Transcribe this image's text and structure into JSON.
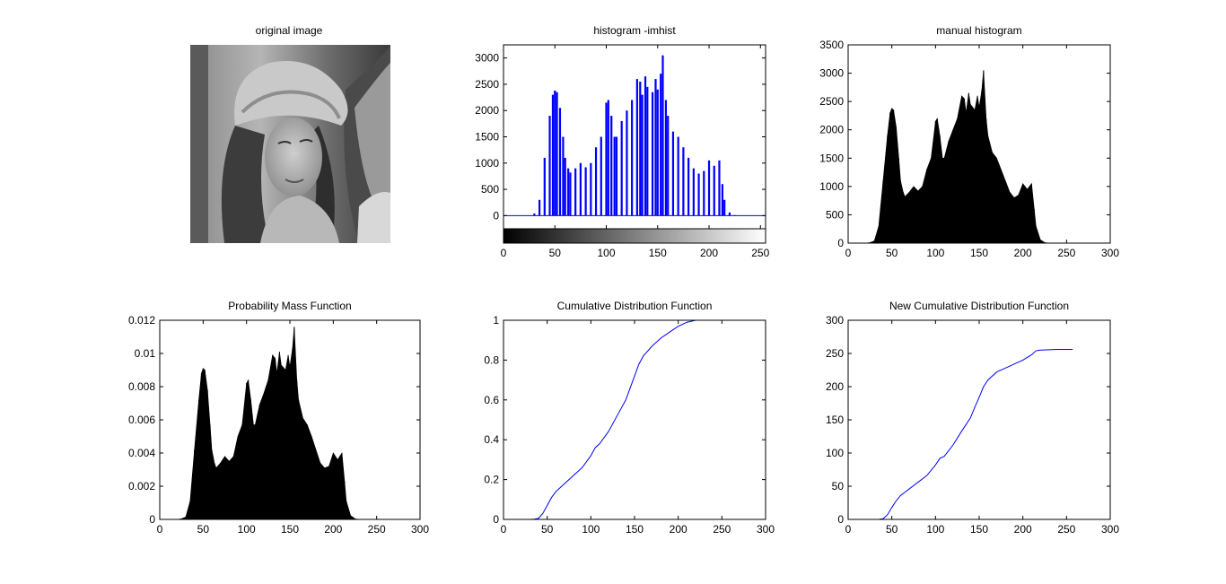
{
  "figure": {
    "background": "#ffffff",
    "image_panel_title": "original image",
    "image_subject": "grayscale portrait photo of a woman wearing a wide-brimmed hat"
  },
  "chart_data": [
    {
      "id": "imhist",
      "type": "bar",
      "title": "histogram -imhist",
      "color": "#0000ff",
      "xlim": [
        0,
        255
      ],
      "ylim": [
        -250,
        3250
      ],
      "xticks": [
        0,
        50,
        100,
        150,
        200,
        250
      ],
      "yticks": [
        0,
        500,
        1000,
        1500,
        2000,
        2500,
        3000
      ],
      "colorbar": "grayscale gradient 0 to 255",
      "x": [
        30,
        35,
        40,
        45,
        48,
        50,
        52,
        55,
        58,
        60,
        63,
        65,
        70,
        75,
        80,
        85,
        90,
        95,
        100,
        102,
        105,
        108,
        110,
        115,
        120,
        125,
        130,
        133,
        135,
        138,
        140,
        145,
        148,
        150,
        153,
        155,
        158,
        160,
        165,
        170,
        175,
        180,
        185,
        190,
        195,
        200,
        205,
        210,
        213,
        215,
        220,
        225,
        230
      ],
      "values": [
        40,
        300,
        1100,
        1900,
        2300,
        2380,
        2350,
        2050,
        1500,
        1100,
        900,
        820,
        900,
        1000,
        920,
        1000,
        1300,
        1500,
        2150,
        2200,
        1900,
        1500,
        1500,
        1800,
        2000,
        2200,
        2600,
        2550,
        2300,
        2650,
        2450,
        2350,
        2600,
        2400,
        2700,
        3050,
        2200,
        1900,
        1600,
        1500,
        1300,
        1100,
        900,
        800,
        850,
        1050,
        950,
        1050,
        600,
        300,
        60,
        10,
        0
      ]
    },
    {
      "id": "manual",
      "type": "area",
      "title": "manual histogram",
      "color": "#000000",
      "xlim": [
        0,
        300
      ],
      "ylim": [
        0,
        3500
      ],
      "xticks": [
        0,
        50,
        100,
        150,
        200,
        250,
        300
      ],
      "yticks": [
        0,
        500,
        1000,
        1500,
        2000,
        2500,
        3000,
        3500
      ],
      "x": [
        0,
        20,
        25,
        30,
        35,
        40,
        45,
        48,
        50,
        52,
        55,
        58,
        60,
        63,
        65,
        70,
        75,
        80,
        85,
        90,
        95,
        100,
        102,
        105,
        108,
        110,
        115,
        120,
        125,
        130,
        133,
        135,
        138,
        140,
        145,
        148,
        150,
        153,
        155,
        158,
        160,
        165,
        170,
        175,
        180,
        185,
        190,
        195,
        200,
        205,
        210,
        213,
        215,
        220,
        225,
        230,
        240,
        256
      ],
      "values": [
        0,
        0,
        10,
        40,
        300,
        1100,
        1900,
        2300,
        2380,
        2350,
        2050,
        1500,
        1100,
        900,
        820,
        900,
        1000,
        920,
        1000,
        1300,
        1500,
        2150,
        2200,
        1900,
        1500,
        1500,
        1800,
        2000,
        2200,
        2600,
        2550,
        2300,
        2650,
        2450,
        2350,
        2600,
        2400,
        2700,
        3050,
        2200,
        1900,
        1600,
        1500,
        1300,
        1100,
        900,
        800,
        850,
        1050,
        950,
        1050,
        600,
        300,
        60,
        10,
        0,
        0,
        0
      ]
    },
    {
      "id": "pmf",
      "type": "area",
      "title": "Probability Mass Function",
      "color": "#000000",
      "xlim": [
        0,
        300
      ],
      "ylim": [
        0,
        0.012
      ],
      "xticks": [
        0,
        50,
        100,
        150,
        200,
        250,
        300
      ],
      "yticks": [
        0,
        0.002,
        0.004,
        0.006,
        0.008,
        0.01,
        0.012
      ],
      "yticklabels": [
        "0",
        "0.002",
        "0.004",
        "0.006",
        "0.008",
        "0.01",
        "0.012"
      ],
      "x": [
        0,
        20,
        25,
        30,
        35,
        40,
        45,
        48,
        50,
        52,
        55,
        58,
        60,
        63,
        65,
        70,
        75,
        80,
        85,
        90,
        95,
        100,
        102,
        105,
        108,
        110,
        115,
        120,
        125,
        130,
        133,
        135,
        138,
        140,
        145,
        148,
        150,
        153,
        155,
        158,
        160,
        165,
        170,
        175,
        180,
        185,
        190,
        195,
        200,
        205,
        210,
        213,
        215,
        220,
        225,
        230,
        240,
        256
      ],
      "values": [
        0,
        0,
        4e-05,
        0.00015,
        0.0011,
        0.0042,
        0.0072,
        0.0088,
        0.0091,
        0.009,
        0.0078,
        0.0057,
        0.0042,
        0.0034,
        0.0031,
        0.0034,
        0.0038,
        0.0035,
        0.0038,
        0.005,
        0.0057,
        0.0082,
        0.0084,
        0.0072,
        0.0057,
        0.0057,
        0.0069,
        0.0076,
        0.0084,
        0.0099,
        0.0097,
        0.0088,
        0.0101,
        0.0093,
        0.009,
        0.0099,
        0.0092,
        0.0103,
        0.0116,
        0.0084,
        0.0072,
        0.0061,
        0.0057,
        0.005,
        0.0042,
        0.0034,
        0.0031,
        0.0032,
        0.004,
        0.0036,
        0.004,
        0.0023,
        0.0011,
        0.00023,
        4e-05,
        0,
        0,
        0
      ]
    },
    {
      "id": "cdf",
      "type": "line",
      "title": "Cumulative Distribution Function",
      "color": "#0000ff",
      "xlim": [
        0,
        300
      ],
      "ylim": [
        0,
        1
      ],
      "xticks": [
        0,
        50,
        100,
        150,
        200,
        250,
        300
      ],
      "yticks": [
        0,
        0.2,
        0.4,
        0.6,
        0.8,
        1
      ],
      "yticklabels": [
        "0",
        "0.2",
        "0.4",
        "0.6",
        "0.8",
        "1"
      ],
      "x": [
        10,
        20,
        30,
        35,
        40,
        45,
        50,
        55,
        60,
        65,
        70,
        80,
        90,
        100,
        105,
        110,
        120,
        130,
        135,
        140,
        145,
        150,
        155,
        160,
        170,
        180,
        190,
        200,
        210,
        220
      ],
      "values": [
        0,
        0,
        0,
        0.001,
        0.005,
        0.03,
        0.07,
        0.11,
        0.14,
        0.16,
        0.18,
        0.22,
        0.26,
        0.32,
        0.36,
        0.38,
        0.44,
        0.52,
        0.56,
        0.6,
        0.66,
        0.72,
        0.78,
        0.82,
        0.87,
        0.91,
        0.94,
        0.97,
        0.99,
        1.0
      ]
    },
    {
      "id": "newcdf",
      "type": "line",
      "title": "New Cumulative Distribution Function",
      "color": "#0000ff",
      "xlim": [
        0,
        300
      ],
      "ylim": [
        0,
        300
      ],
      "xticks": [
        0,
        50,
        100,
        150,
        200,
        250,
        300
      ],
      "yticks": [
        0,
        50,
        100,
        150,
        200,
        250,
        300
      ],
      "x": [
        35,
        40,
        45,
        50,
        55,
        60,
        65,
        70,
        80,
        90,
        100,
        105,
        110,
        120,
        130,
        135,
        140,
        145,
        150,
        155,
        160,
        170,
        180,
        190,
        200,
        210,
        215,
        220,
        240,
        257
      ],
      "values": [
        0,
        1,
        7,
        18,
        28,
        36,
        41,
        46,
        56,
        66,
        82,
        92,
        95,
        112,
        133,
        143,
        153,
        169,
        184,
        200,
        210,
        222,
        228,
        234,
        240,
        248,
        254,
        255,
        256,
        256
      ]
    }
  ]
}
